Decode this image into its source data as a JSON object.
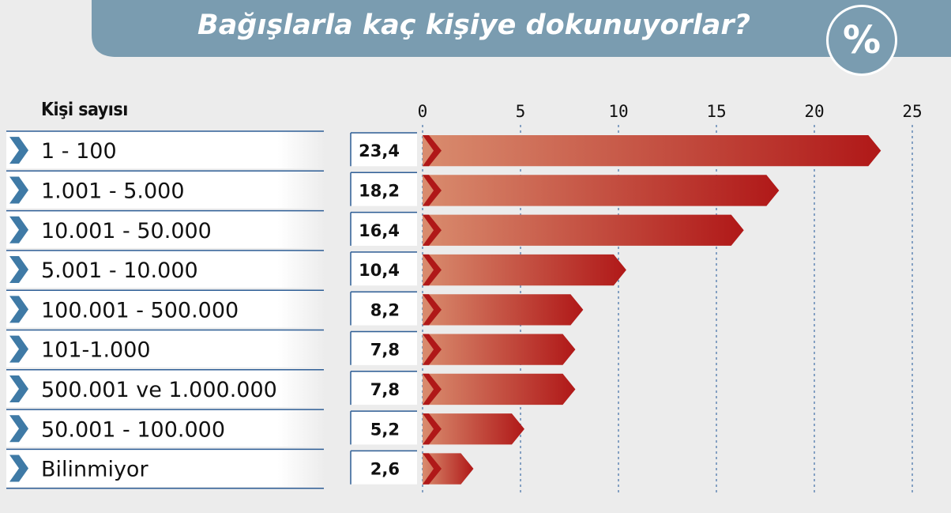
{
  "header": {
    "title": "Bağışlarla kaç kişiye dokunuyorlar?",
    "badge": "%"
  },
  "colors": {
    "header": "#7a9cb0",
    "row_border": "#2e5e96",
    "chevron": "#3f7aa6",
    "bar_start": "#d98c6e",
    "bar_end": "#b01818",
    "grid": "#3f6fa6"
  },
  "chart_data": {
    "type": "bar",
    "orientation": "horizontal",
    "title": "Bağışlarla kaç kişiye dokunuyorlar?",
    "category_header": "Kişi sayısı",
    "unit": "%",
    "categories": [
      "1 - 100",
      "1.001 - 5.000",
      "10.001 - 50.000",
      "5.001 - 10.000",
      "100.001 - 500.000",
      "101-1.000",
      "500.001 ve 1.000.000",
      "50.001 - 100.000",
      "Bilinmiyor"
    ],
    "values": [
      23.4,
      18.2,
      16.4,
      10.4,
      8.2,
      7.8,
      7.8,
      5.2,
      2.6
    ],
    "value_labels": [
      "23,4",
      "18,2",
      "16,4",
      "10,4",
      "8,2",
      "7,8",
      "7,8",
      "5,2",
      "2,6"
    ],
    "xlim": [
      0,
      25
    ],
    "xticks": [
      0,
      5,
      10,
      15,
      20,
      25
    ],
    "grid": true
  }
}
